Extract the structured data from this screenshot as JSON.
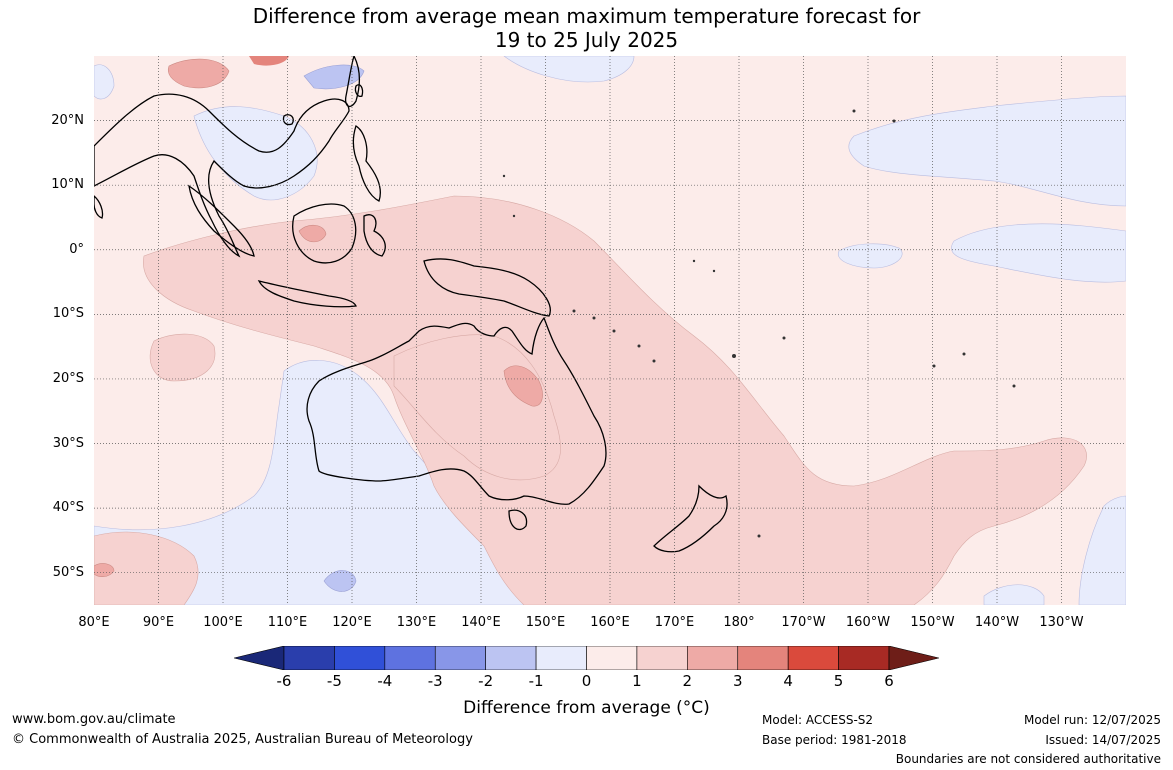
{
  "title": {
    "line1": "Difference from average mean maximum temperature forecast for",
    "line2": "19 to 25 July 2025"
  },
  "axes": {
    "lat_labels": [
      "20°N",
      "10°N",
      "0°",
      "10°S",
      "20°S",
      "30°S",
      "40°S",
      "50°S"
    ],
    "lat_values": [
      20,
      10,
      0,
      -10,
      -20,
      -30,
      -40,
      -50
    ],
    "lon_labels": [
      "80°E",
      "90°E",
      "100°E",
      "110°E",
      "120°E",
      "130°E",
      "140°E",
      "150°E",
      "160°E",
      "170°E",
      "180°",
      "170°W",
      "160°W",
      "150°W",
      "140°W",
      "130°W"
    ],
    "lon_values": [
      80,
      90,
      100,
      110,
      120,
      130,
      140,
      150,
      160,
      170,
      180,
      190,
      200,
      210,
      220,
      230
    ],
    "lon_range": [
      80,
      240
    ],
    "lat_range": [
      -55,
      30
    ]
  },
  "colorbar": {
    "title": "Difference from average (°C)",
    "ticks": [
      "-6",
      "-5",
      "-4",
      "-3",
      "-2",
      "-1",
      "0",
      "1",
      "2",
      "3",
      "4",
      "5",
      "6"
    ],
    "colors": [
      "#1a2878",
      "#2a3eac",
      "#3050d8",
      "#5e72e0",
      "#8896e8",
      "#bcc4f2",
      "#e8ecfc",
      "#fcecea",
      "#f6d2d0",
      "#eeaaa6",
      "#e4847c",
      "#da4a3c",
      "#a82a24",
      "#6e1e18"
    ]
  },
  "footer": {
    "website": "www.bom.gov.au/climate",
    "copyright": "© Commonwealth of Australia 2025, Australian Bureau of Meteorology",
    "model": "Model: ACCESS-S2",
    "base_period": "Base period: 1981-2018",
    "model_run": "Model run: 12/07/2025",
    "issued": "Issued: 14/07/2025",
    "disclaimer": "Boundaries are not considered authoritative"
  },
  "colors": {
    "background_anomaly": "#fcecea",
    "warm_anomaly": "#f6d2d0",
    "cool_anomaly": "#e8ecfc",
    "grid": "#555555"
  }
}
